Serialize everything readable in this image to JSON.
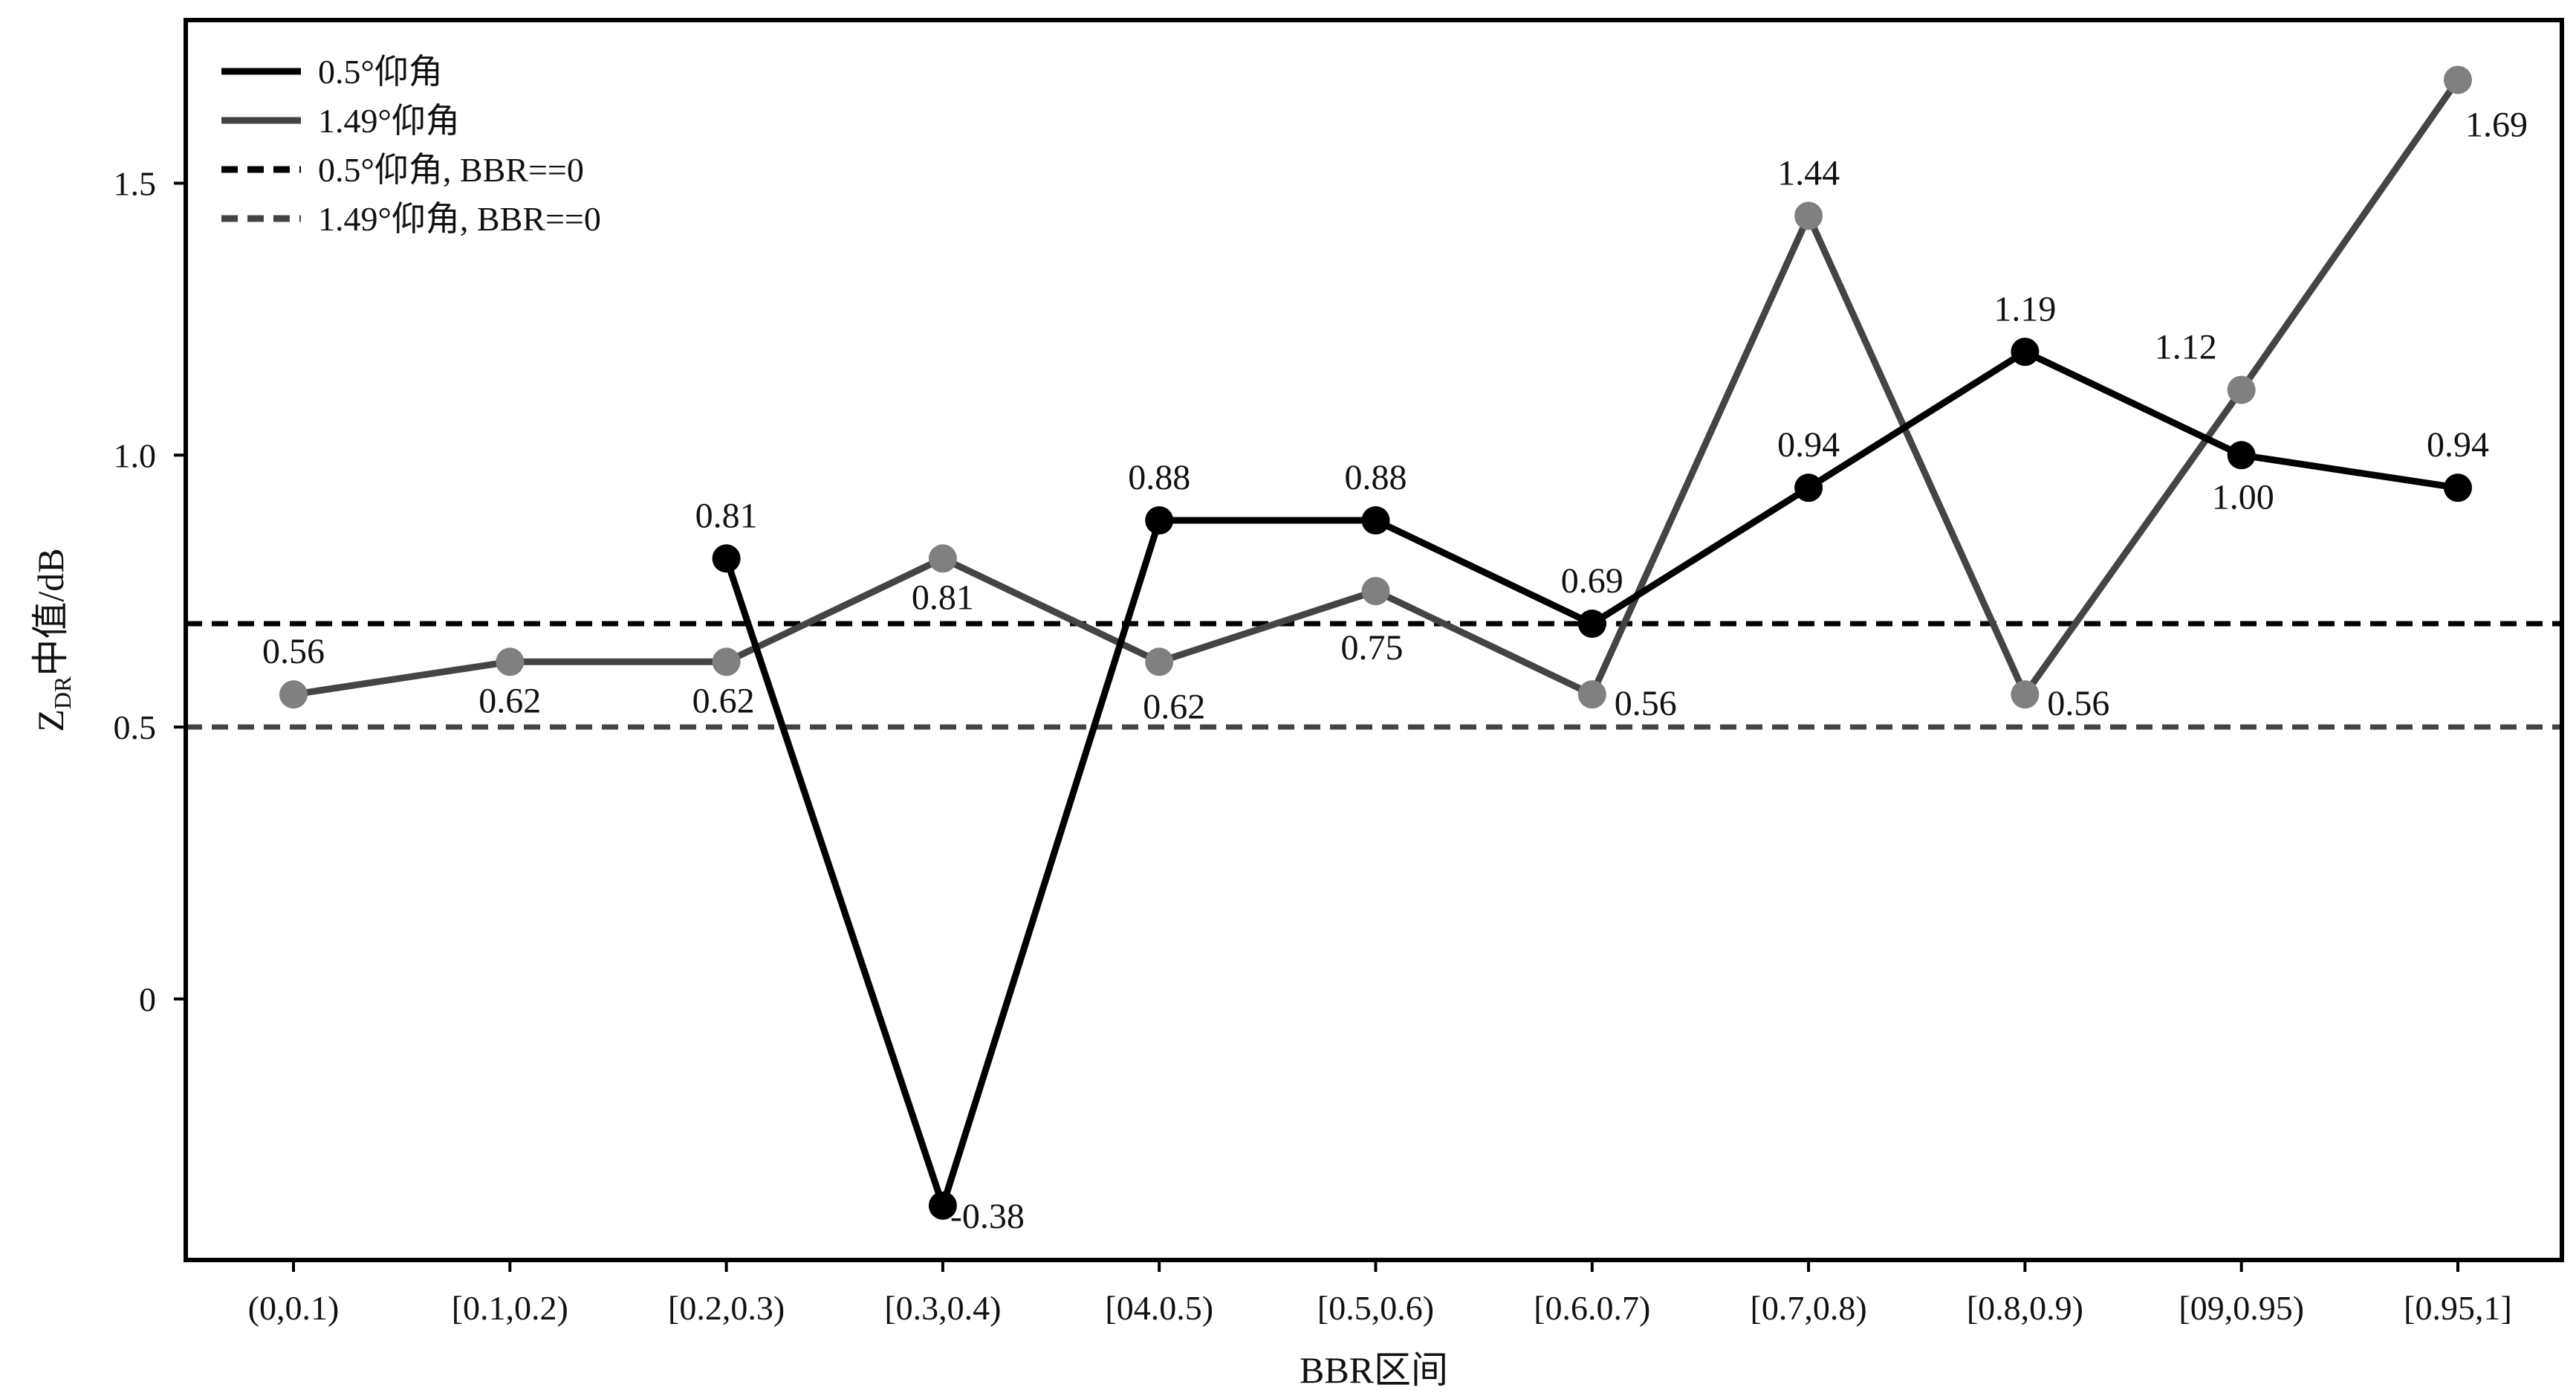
{
  "chart_data": {
    "type": "line",
    "title": "",
    "xlabel": "BBR区间",
    "ylabel": {
      "main": "Z",
      "subscript": "DR",
      "suffix": "中值/dB"
    },
    "categories": [
      "(0,0.1)",
      "[0.1,0.2)",
      "[0.2,0.3)",
      "[0.3,0.4)",
      "[04.0.5)",
      "[0.5,0.6)",
      "[0.6.0.7)",
      "[0.7,0.8)",
      "[0.8,0.9)",
      "[09,0.95)",
      "[0.95,1]"
    ],
    "ylim": [
      -0.48,
      1.8
    ],
    "yticks": [
      0,
      0.5,
      1.0,
      1.5
    ],
    "ytick_labels": [
      "0",
      "0.5",
      "1.0",
      "1.5"
    ],
    "grid": false,
    "legend_position": "top-left",
    "series": [
      {
        "name": "0.5°仰角",
        "color": "#000000",
        "line_style": "solid",
        "values": [
          null,
          null,
          0.81,
          -0.38,
          0.88,
          0.88,
          0.69,
          0.94,
          1.19,
          1.0,
          0.94
        ],
        "labels": [
          null,
          null,
          "0.81",
          "-0.38",
          "0.88",
          "0.88",
          "0.69",
          "0.94",
          "1.19",
          "1.00",
          "0.94"
        ]
      },
      {
        "name": "1.49°仰角",
        "color": "#444444",
        "marker_color": "#808080",
        "line_style": "solid",
        "values": [
          0.56,
          0.62,
          0.62,
          0.81,
          0.62,
          0.75,
          0.56,
          1.44,
          0.56,
          1.12,
          1.69
        ],
        "labels": [
          "0.56",
          "0.62",
          "0.62",
          "0.81",
          "0.62",
          "0.75",
          "0.56",
          "1.44",
          "0.56",
          "1.12",
          "1.69"
        ]
      }
    ],
    "reference_lines": [
      {
        "name": "0.5°仰角, BBR==0",
        "value": 0.69,
        "color": "#000000",
        "line_style": "dashed"
      },
      {
        "name": "1.49°仰角, BBR==0",
        "value": 0.5,
        "color": "#444444",
        "line_style": "dashed"
      }
    ]
  }
}
